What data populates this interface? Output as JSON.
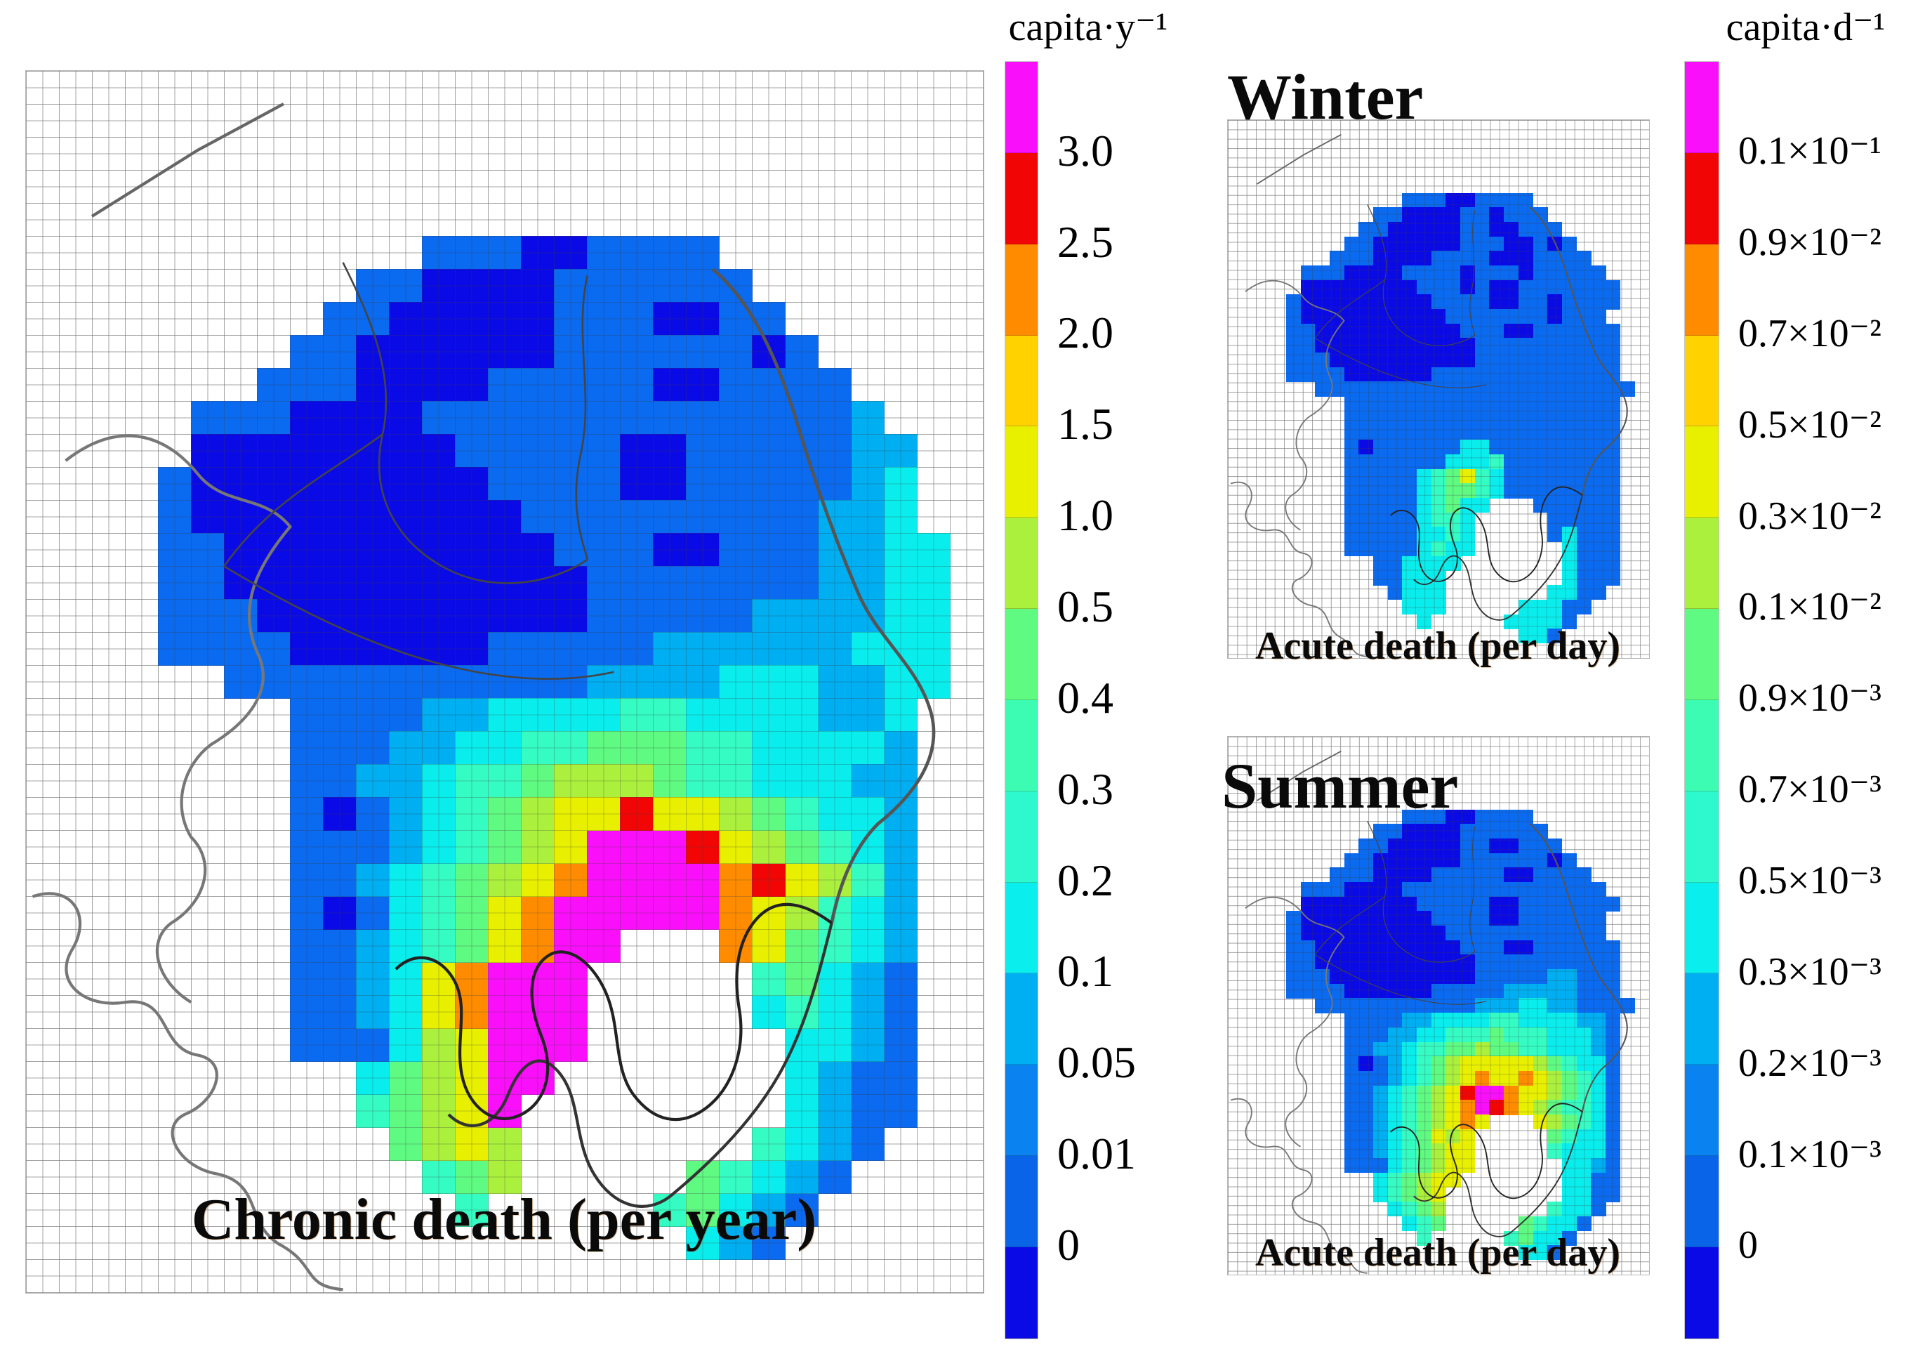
{
  "figure": {
    "main_map": {
      "caption": "Chronic death (per year)"
    },
    "winter_map": {
      "title": "Winter",
      "caption": "Acute death (per day)"
    },
    "summer_map": {
      "title": "Summer",
      "caption": "Acute death (per day)"
    },
    "left_colorbar": {
      "title": "capita·y⁻¹"
    },
    "right_colorbar": {
      "title": "capita·d⁻¹"
    }
  },
  "chart_data": {
    "type": "heatmap",
    "description": "Gridded mortality maps over the Kanto region (Tokyo area, Japan): one large annual chronic-death map and two small acute-death maps (Winter, Summer). White cells = sea / outside domain.",
    "palette": {
      "K": "#0A0AE6",
      "B": "#0A6AF0",
      "C": "#00AEF2",
      "c": "#0AEDED",
      "T": "#35FCC3",
      "G": "#5FFA82",
      "g": "#AAF03C",
      "Y": "#E8F000",
      "y": "#FFD200",
      "O": "#FF8C00",
      "R": "#F20505",
      "M": "#FA0FFA"
    },
    "palette_meaning_capita_per_year": {
      "K": "0",
      "B": "0–0.05",
      "C": "0.05–0.1",
      "c": "0.1–0.2",
      "T": "0.2–0.4",
      "G": "0.4–0.5",
      "g": "0.5–1.0",
      "Y": "1.0–1.5",
      "y": "1.5–2.0",
      "O": "2.0–2.5",
      "R": "2.5–3.0",
      "M": ">3.0"
    },
    "maps": [
      {
        "id": "chronic",
        "caption": "Chronic death (per year)",
        "units": "capita·y⁻¹",
        "cols": 29,
        "rows": 37,
        "grid": [
          ".............................",
          ".............................",
          ".............................",
          ".............................",
          ".............................",
          "............BBBKKBBBB........",
          "..........BBKKKKBBBBBB.......",
          ".........BBKKKKKBBBKKBB......",
          "........BBKKKKKKBBBBBBKB.....",
          ".......BBBKKKKBBBBBKKBBBB....",
          ".....BBBKKKKBBBBBBBBBBBBBC...",
          ".....KKKKKKKKBBBBBKKBBBBBCC..",
          "....BKKKKKKKKKBBBBKKBBBBBCc..",
          "....BKKKKKKKKKKBBBBBBBBBCCc..",
          "....BBKKKKKKKKKKBBBKKBBBCCcc.",
          "....BBKKKKKKKKKKKBBBBBBBCCcc.",
          "....BBBKKKKKKKKKKBBBBBCCCCcc.",
          "....BBBBKKKKKKBBBBBCCCCCCccc.",
          "......BBBBBBBBBBBCCCCcccCCcc.",
          "........BBBBCCccccTTccccCCc..",
          "........BBBCCccTTGGGTTccccC..",
          "........BBCCcTTGgggGTTcccCC..",
          "........BKBCcTGgYYRYYgGTccC..",
          "........BBBCcTGgYMMMRYgGTcC..",
          "........BBCcTGgYOMMMMORYgTC..",
          "........BKBcTGYOMMMMMOYgTcC..",
          "........BBCcTGYOMM...OYGTcC..",
          "........BBCcYOMMM.....TGcCB..",
          "........BBCcYOMMM.....cTcCB..",
          "........BBBcgYMMM......ccCB..",
          "..........cGgYMM.......cCBB..",
          "..........TGgYM........cCBB..",
          "...........GgYg.......TcCB...",
          "............TGg.....GTcCB....",
          ".............T.....TGcCB.....",
          "....................cCB......",
          "............................."
        ]
      },
      {
        "id": "acute-winter",
        "title": "Winter",
        "caption": "Acute death (per day)",
        "units": "capita·d⁻¹",
        "cols": 29,
        "rows": 37,
        "grid": [
          ".............................",
          ".............................",
          ".............................",
          ".............................",
          ".............................",
          "............BBBKKBBBB........",
          "..........BBKKKKBBKBBB.......",
          ".........BBKKKKKBBKKBBB......",
          "........BBKKKKKKBBBKKBKB.....",
          ".......BBBKKKKBBBBKKKBBBB....",
          ".....BBBKKKKBBBBKBBBKBBBBB...",
          ".....KKKKKKKKBBBKBKKBBBBBBB..",
          "....BKKKKKKKKKBBBBKKBBKBBBB..",
          "....BKKKKKKKKKKBBBBBBBKBBB...",
          "....BBKKKKKKKKKKBBBKKBBBBBB..",
          "....BBKKKKKKKKKKKBBBBBBBBBB..",
          "....BBBKKKKKKKKKKBBBBBBBBBB..",
          "....BBBBKKKKKKBBBBBBBBBBBBB..",
          "......BBBBBBBBBBBBBBBBBBBBBB.",
          "........BBBBBBBBBBBBBBBBBBB..",
          "........BBBBBBBBBBBBBBBBBBB..",
          "........BBBBBBBBBBBBBBBBBBB..",
          "........BKBBBBBBccBBBBBBBBB..",
          "........BBBBBBBcccTBBBBBBBB..",
          "........BBBBBcTGYTcBBBBBBBB..",
          "........BBBBBcTGGTcBBBBBBBB..",
          "........BBBBBcTGcc...BBBBBB..",
          "........BBBBBcTTc.....BBBBB..",
          "........BBBBBccTc.....BcBBB..",
          "........BBBBBcTcc......cBBB..",
          "..........BBcccc.......cBBB..",
          "..........BBccc........cBBB..",
          "...........Bccc.......ccBB...",
          "............ccc.....cccBB....",
          ".............c.....ccccB.....",
          "....................ccB......",
          "............................."
        ]
      },
      {
        "id": "acute-summer",
        "title": "Summer",
        "caption": "Acute death (per day)",
        "units": "capita·d⁻¹",
        "cols": 29,
        "rows": 37,
        "grid": [
          ".............................",
          ".............................",
          ".............................",
          ".............................",
          ".............................",
          "............BBBKKBBBB........",
          "..........BBKKKKBBBBBB.......",
          ".........BBKKKKKBBKKBBB......",
          "........BBKKKKKKBBBBBBKB.....",
          ".......BBBKKKKBBBBBKKBBBB....",
          ".....BBBKKKKBBBBBBBBBBBBBB...",
          ".....KKKKKKKKBBBBBKKBBBBBBB..",
          "....BKKKKKKKKKBBBBKKBBBBBB...",
          "....BKKKKKKKKKKBBBBBBBBBBB...",
          "....BBKKKKKKKKKKBBBKKBBBBBB..",
          "....BBKKKKKKKKKKKBBBBBBBBBB..",
          "....BBBKKKKKKKKKKBBBBBCCBBB..",
          "....BBBBKKKKKKBBBBBCCCCCBBB..",
          "......BBBBBBBBBBBCCCccCCBBBB.",
          "........BBBBCCccccTTccccCCB..",
          "........BBBCCccTTTGTTTcccCB..",
          "........BBCCcTTGGgGGTTcccCB..",
          "........BKBCcTGgYYYYYgGTccB..",
          "........BBBCcTGgYOYYOYgGTcB..",
          "........BBCcTGgYRMMOYYgGTcB..",
          "........BBCcTGgYOMROYgGTTcB..",
          "........BBCcTGgYOY...YgGTcB..",
          "........BBCcTGYgY.....GTccB..",
          "........BBCcTGgYY.....TcccB..",
          "........BBBcTGgYY......ccCB..",
          "..........cTGgYY.......ccBB..",
          "..........cTGgY........ccBB..",
          "...........cTGg.......TccB...",
          "............cTG.....GTccB....",
          ".............T.....TGccB.....",
          "....................ccB......",
          "............................."
        ]
      }
    ],
    "colorbars": [
      {
        "title": "capita·y⁻¹",
        "position": "center-left of figure",
        "orientation": "vertical",
        "tick_labels_top_to_bottom": [
          "3.0",
          "2.5",
          "2.0",
          "1.5",
          "1.0",
          "0.5",
          "0.4",
          "0.3",
          "0.2",
          "0.1",
          "0.05",
          "0.01",
          "0"
        ],
        "segment_colors_top_to_bottom": [
          "#FA0FFA",
          "#F20505",
          "#FF8C00",
          "#FFD200",
          "#E8F000",
          "#AAF03C",
          "#5FFA82",
          "#3CFCB4",
          "#2EF8CD",
          "#0AEEEE",
          "#00AEF2",
          "#0A82F0",
          "#0A64E8",
          "#0A0AE6"
        ]
      },
      {
        "title": "capita·d⁻¹",
        "position": "far right of figure",
        "orientation": "vertical",
        "tick_labels_top_to_bottom": [
          "0.1×10⁻¹",
          "0.9×10⁻²",
          "0.7×10⁻²",
          "0.5×10⁻²",
          "0.3×10⁻²",
          "0.1×10⁻²",
          "0.9×10⁻³",
          "0.7×10⁻³",
          "0.5×10⁻³",
          "0.3×10⁻³",
          "0.2×10⁻³",
          "0.1×10⁻³",
          "0"
        ],
        "segment_colors_top_to_bottom": [
          "#FA0FFA",
          "#F20505",
          "#FF8C00",
          "#FFD200",
          "#E8F000",
          "#AAF03C",
          "#5FFA82",
          "#3CFCB4",
          "#2EF8CD",
          "#0AEEEE",
          "#00AEF2",
          "#0A82F0",
          "#0A64E8",
          "#0A0AE6"
        ]
      }
    ]
  }
}
